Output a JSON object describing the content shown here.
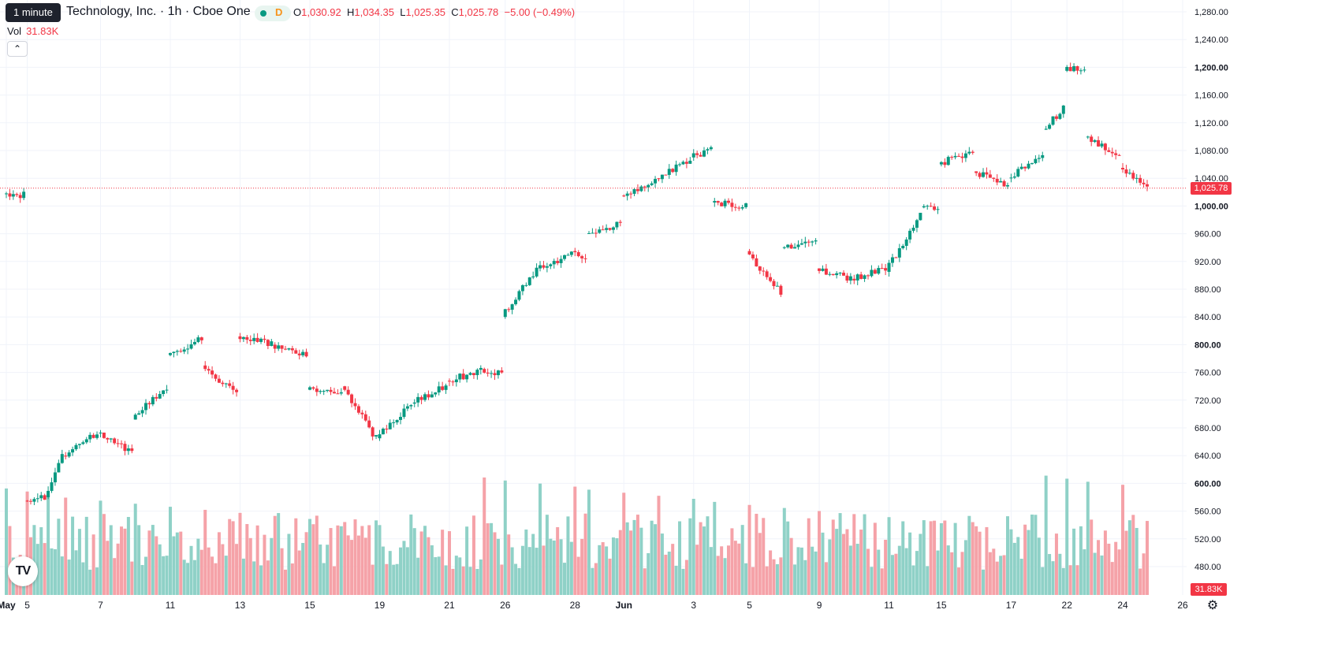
{
  "tooltip": "1 minute",
  "header": {
    "title": "Technology, Inc. · 1h · Cboe One",
    "market_status_letter": "D",
    "o_label": "O",
    "o_value": "1,030.92",
    "h_label": "H",
    "h_value": "1,034.35",
    "l_label": "L",
    "l_value": "1,025.35",
    "c_label": "C",
    "c_value": "1,025.78",
    "change": "−5.00 (−0.49%)"
  },
  "volume": {
    "label": "Vol",
    "value": "31.83K"
  },
  "last_price_label": "1,025.78",
  "last_volume_label": "31.83K",
  "colors": {
    "up": "#089981",
    "down": "#f23645",
    "up_vol": "#8fd1c7",
    "down_vol": "#f5a2a8"
  },
  "logo_text": "TV",
  "chart_data": {
    "type": "candlestick",
    "price_axis": {
      "ticks": [
        "1,280.00",
        "1,240.00",
        "1,200.00",
        "1,160.00",
        "1,120.00",
        "1,080.00",
        "1,040.00",
        "1,000.00",
        "960.00",
        "920.00",
        "880.00",
        "840.00",
        "800.00",
        "760.00",
        "720.00",
        "680.00",
        "640.00",
        "600.00",
        "560.00",
        "520.00",
        "480.00"
      ],
      "tick_values": [
        1280,
        1240,
        1200,
        1160,
        1120,
        1080,
        1040,
        1000,
        960,
        920,
        880,
        840,
        800,
        760,
        720,
        680,
        640,
        600,
        560,
        520,
        480
      ],
      "bold_ticks": [
        "1,200.00",
        "1,000.00",
        "800.00",
        "600.00"
      ],
      "range": [
        464,
        1296
      ]
    },
    "time_axis": {
      "labels": [
        "May",
        "5",
        "7",
        "11",
        "13",
        "15",
        "19",
        "21",
        "26",
        "28",
        "Jun",
        "3",
        "5",
        "9",
        "11",
        "15",
        "17",
        "22",
        "24",
        "26"
      ],
      "bold_labels": [
        "May",
        "Jun"
      ]
    },
    "last_close": 1025.78,
    "sessions": [
      {
        "label": "May",
        "start": 1018,
        "end": 1016,
        "n": 6,
        "seed": 1
      },
      {
        "label": "5",
        "start": 575,
        "end": 580,
        "n": 6,
        "seed": 2
      },
      {
        "label": "",
        "start": 580,
        "end": 640,
        "n": 5,
        "seed": 3
      },
      {
        "label": "",
        "start": 640,
        "end": 672,
        "n": 10,
        "seed": 4
      },
      {
        "label": "7",
        "start": 672,
        "end": 645,
        "n": 10,
        "seed": 5
      },
      {
        "label": "",
        "start": 692,
        "end": 740,
        "n": 10,
        "seed": 6
      },
      {
        "label": "11",
        "start": 785,
        "end": 808,
        "n": 10,
        "seed": 7
      },
      {
        "label": "",
        "start": 770,
        "end": 730,
        "n": 10,
        "seed": 8
      },
      {
        "label": "13",
        "start": 812,
        "end": 800,
        "n": 10,
        "seed": 9
      },
      {
        "label": "",
        "start": 800,
        "end": 785,
        "n": 10,
        "seed": 10
      },
      {
        "label": "15",
        "start": 735,
        "end": 730,
        "n": 10,
        "seed": 11
      },
      {
        "label": "",
        "start": 740,
        "end": 665,
        "n": 10,
        "seed": 12
      },
      {
        "label": "19",
        "start": 665,
        "end": 715,
        "n": 10,
        "seed": 13
      },
      {
        "label": "",
        "start": 715,
        "end": 740,
        "n": 10,
        "seed": 14
      },
      {
        "label": "21",
        "start": 748,
        "end": 762,
        "n": 10,
        "seed": 15
      },
      {
        "label": "",
        "start": 765,
        "end": 758,
        "n": 6,
        "seed": 16
      },
      {
        "label": "26",
        "start": 840,
        "end": 910,
        "n": 10,
        "seed": 17
      },
      {
        "label": "",
        "start": 910,
        "end": 930,
        "n": 10,
        "seed": 18
      },
      {
        "label": "28",
        "start": 935,
        "end": 925,
        "n": 4,
        "seed": 19
      },
      {
        "label": "",
        "start": 960,
        "end": 975,
        "n": 10,
        "seed": 20
      },
      {
        "label": "Jun",
        "start": 1015,
        "end": 1035,
        "n": 10,
        "seed": 21
      },
      {
        "label": "",
        "start": 1040,
        "end": 1068,
        "n": 10,
        "seed": 22
      },
      {
        "label": "3",
        "start": 1070,
        "end": 1080,
        "n": 6,
        "seed": 23
      },
      {
        "label": "",
        "start": 1005,
        "end": 1000,
        "n": 10,
        "seed": 24
      },
      {
        "label": "5",
        "start": 935,
        "end": 875,
        "n": 10,
        "seed": 25
      },
      {
        "label": "",
        "start": 940,
        "end": 950,
        "n": 10,
        "seed": 26
      },
      {
        "label": "9",
        "start": 910,
        "end": 895,
        "n": 10,
        "seed": 27
      },
      {
        "label": "",
        "start": 895,
        "end": 910,
        "n": 10,
        "seed": 28
      },
      {
        "label": "11",
        "start": 905,
        "end": 990,
        "n": 10,
        "seed": 29
      },
      {
        "label": "",
        "start": 998,
        "end": 992,
        "n": 5,
        "seed": 30
      },
      {
        "label": "15",
        "start": 1060,
        "end": 1080,
        "n": 10,
        "seed": 31
      },
      {
        "label": "",
        "start": 1050,
        "end": 1030,
        "n": 10,
        "seed": 32
      },
      {
        "label": "17",
        "start": 1040,
        "end": 1070,
        "n": 10,
        "seed": 33
      },
      {
        "label": "",
        "start": 1110,
        "end": 1140,
        "n": 6,
        "seed": 34
      },
      {
        "label": "22",
        "start": 1195,
        "end": 1200,
        "n": 6,
        "seed": 35
      },
      {
        "label": "",
        "start": 1100,
        "end": 1070,
        "n": 10,
        "seed": 36
      },
      {
        "label": "24",
        "start": 1055,
        "end": 1026,
        "n": 8,
        "seed": 37
      }
    ]
  }
}
